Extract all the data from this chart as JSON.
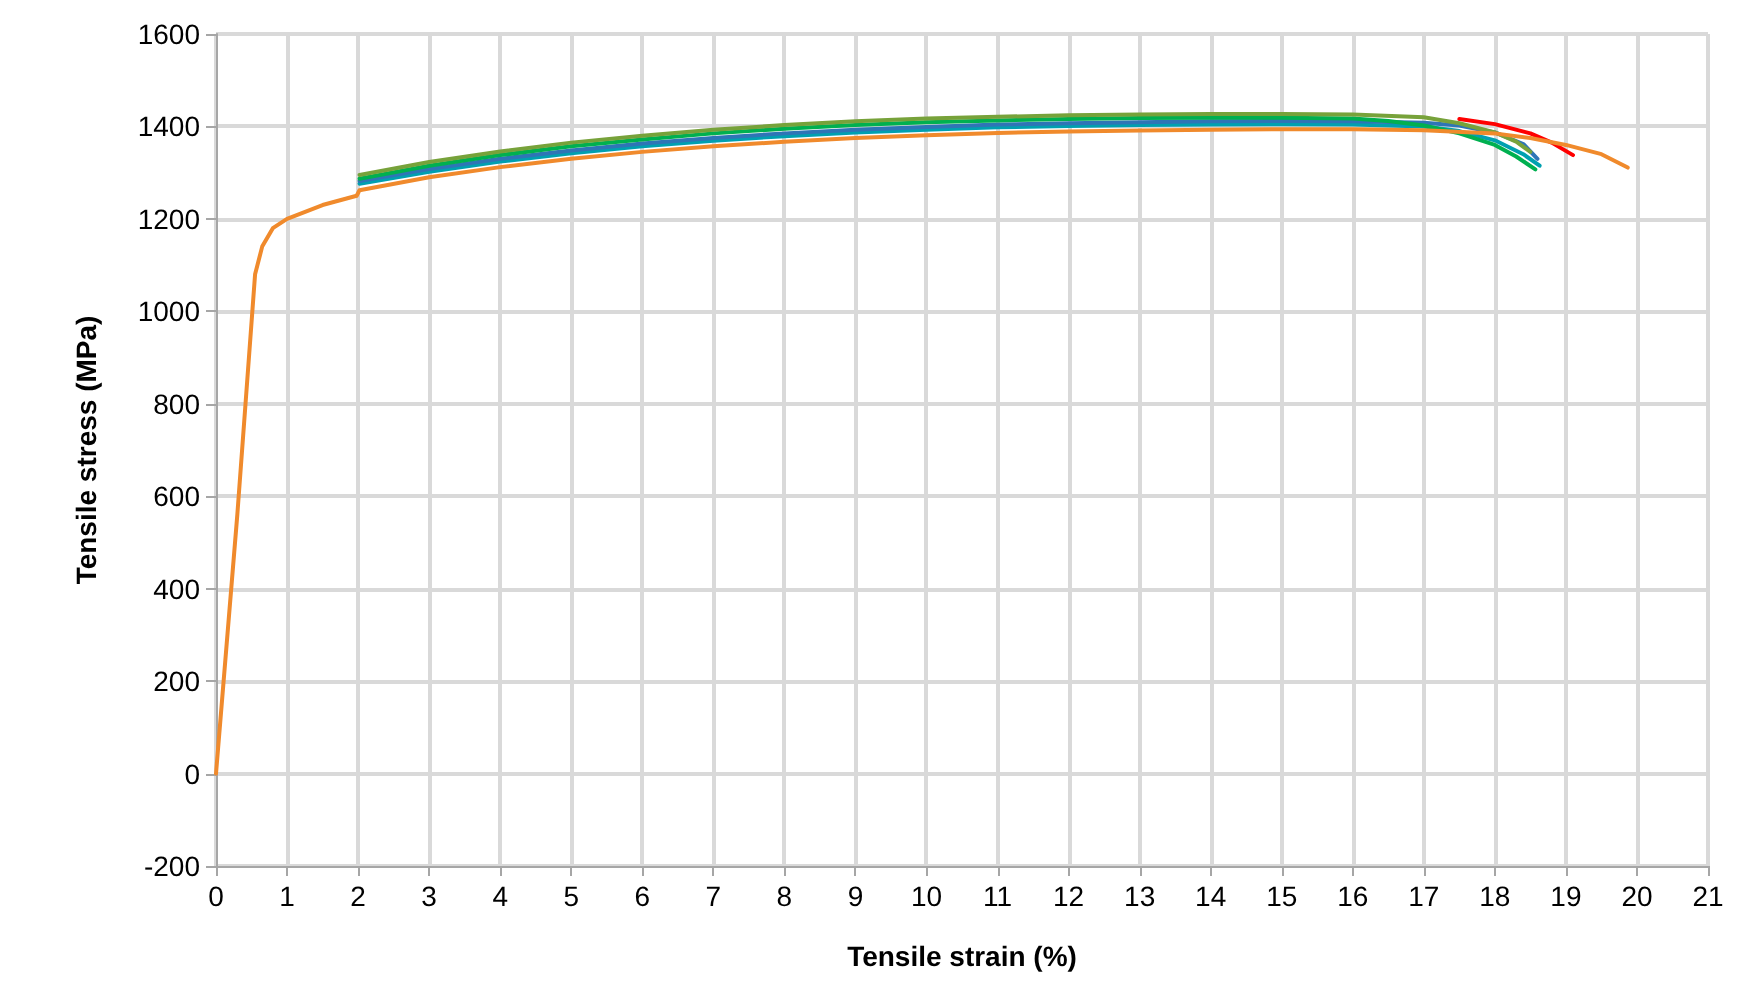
{
  "chart_data": {
    "type": "line",
    "xlabel": "Tensile strain (%)",
    "ylabel": "Tensile stress (MPa)",
    "xlim": [
      0,
      21
    ],
    "xticks": [
      0,
      1,
      2,
      3,
      4,
      5,
      6,
      7,
      8,
      9,
      10,
      11,
      12,
      13,
      14,
      15,
      16,
      17,
      18,
      19,
      20,
      21
    ],
    "ylim": [
      -200,
      1600
    ],
    "yticks": [
      -200,
      0,
      200,
      400,
      600,
      800,
      1000,
      1200,
      1400,
      1600
    ],
    "grid": true,
    "marker": "none",
    "line_style": "solid",
    "series": [
      {
        "color": "#ff0000",
        "x": [
          17.5,
          18,
          18.5,
          18.8,
          19.1
        ],
        "values": [
          1416,
          1405,
          1385,
          1365,
          1338
        ]
      },
      {
        "color": "#00a0b0",
        "x": [
          2.02,
          3,
          4,
          5,
          6,
          7,
          8,
          9,
          10,
          11,
          12,
          13,
          14,
          15,
          16,
          17,
          17.5,
          18,
          18.4,
          18.63
        ],
        "values": [
          1276,
          1302,
          1324,
          1342,
          1357,
          1369,
          1379,
          1387,
          1393,
          1398,
          1401,
          1403,
          1404,
          1405,
          1404,
          1400,
          1390,
          1370,
          1340,
          1315
        ]
      },
      {
        "color": "#2e75b6",
        "x": [
          2.02,
          3,
          4,
          5,
          6,
          7,
          8,
          9,
          10,
          11,
          12,
          13,
          14,
          15,
          16,
          17,
          17.5,
          18,
          18.4,
          18.6
        ],
        "values": [
          1282,
          1308,
          1330,
          1348,
          1363,
          1375,
          1385,
          1393,
          1399,
          1404,
          1407,
          1409,
          1411,
          1412,
          1411,
          1408,
          1402,
          1387,
          1362,
          1330
        ]
      },
      {
        "color": "#00b050",
        "x": [
          2.02,
          3,
          4,
          5,
          6,
          7,
          8,
          9,
          10,
          11,
          12,
          13,
          14,
          15,
          16,
          16.5,
          17,
          17.5,
          18,
          18.3,
          18.57
        ],
        "values": [
          1287,
          1315,
          1338,
          1357,
          1372,
          1385,
          1395,
          1403,
          1409,
          1413,
          1416,
          1418,
          1419,
          1419,
          1417,
          1412,
          1402,
          1385,
          1360,
          1335,
          1307
        ]
      },
      {
        "color": "#77a23a",
        "x": [
          2.02,
          3,
          4,
          5,
          6,
          7,
          8,
          9,
          10,
          11,
          12,
          13,
          14,
          15,
          16,
          17,
          17.5,
          18,
          18.3,
          18.5
        ],
        "values": [
          1295,
          1323,
          1346,
          1365,
          1380,
          1393,
          1403,
          1411,
          1417,
          1421,
          1424,
          1426,
          1427,
          1427,
          1426,
          1420,
          1407,
          1387,
          1367,
          1345
        ]
      },
      {
        "color": "#f08a2c",
        "x": [
          0,
          0.3,
          0.55,
          0.65,
          0.8,
          1,
          1.5,
          1.98,
          2.02,
          3,
          4,
          5,
          6,
          7,
          8,
          9,
          10,
          11,
          12,
          13,
          14,
          15,
          16,
          17,
          18,
          18.5,
          19,
          19.5,
          19.87
        ],
        "values": [
          0,
          560,
          1080,
          1140,
          1180,
          1200,
          1230,
          1250,
          1262,
          1290,
          1312,
          1330,
          1345,
          1357,
          1367,
          1375,
          1381,
          1386,
          1389,
          1391,
          1393,
          1394,
          1394,
          1392,
          1385,
          1375,
          1360,
          1340,
          1311
        ]
      }
    ]
  }
}
